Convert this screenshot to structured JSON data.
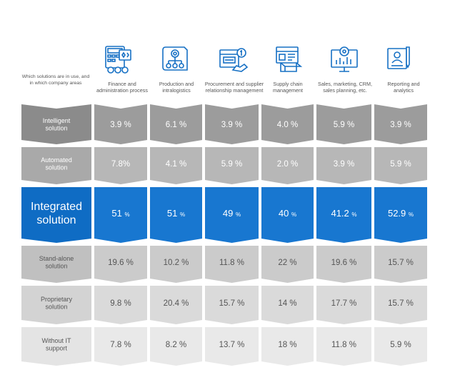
{
  "chart_data": {
    "type": "table",
    "corner_label": "Which solutions are in use, and in which company areas",
    "columns": [
      {
        "label": "Finance and administration process",
        "icon": "finance-calculator-icon"
      },
      {
        "label": "Production and intralogistics",
        "icon": "production-gear-flow-icon"
      },
      {
        "label": "Procurement and supplier relationship management",
        "icon": "procurement-handshake-icon"
      },
      {
        "label": "Supply chain management",
        "icon": "supply-chain-box-icon"
      },
      {
        "label": "Sales, marketing, CRM, sales planning, etc.",
        "icon": "sales-gear-chart-icon"
      },
      {
        "label": "Reporting and analytics",
        "icon": "reporting-person-pen-icon"
      }
    ],
    "rows": [
      {
        "label": "Intelligent solution",
        "values": [
          "3.9 %",
          "6.1 %",
          "3.9 %",
          "4.0 %",
          "5.9 %",
          "3.9 %"
        ]
      },
      {
        "label": "Automated solution",
        "values": [
          "7.8%",
          "4.1 %",
          "5.9 %",
          "2.0 %",
          "3.9 %",
          "5.9 %"
        ]
      },
      {
        "label": "Integrated solution",
        "values": [
          "51 %",
          "51 %",
          "49 %",
          "40 %",
          "41.2 %",
          "52.9 %"
        ],
        "highlight": true
      },
      {
        "label": "Stand-alone solution",
        "values": [
          "19.6 %",
          "10.2 %",
          "11.8 %",
          "22 %",
          "19.6 %",
          "15.7 %"
        ]
      },
      {
        "label": "Proprietary solution",
        "values": [
          "9.8 %",
          "20.4 %",
          "15.7 %",
          "14 %",
          "17.7 %",
          "15.7 %"
        ]
      },
      {
        "label": "Without IT support",
        "values": [
          "7.8 %",
          "8.2 %",
          "13.7 %",
          "18 %",
          "11.8 %",
          "5.9 %"
        ]
      }
    ],
    "colors": {
      "header_text": "#555555",
      "icon": "#1670c4",
      "rows": [
        {
          "label_bg": "#8b8b8b",
          "cell_bg": "#9c9c9c",
          "text": "#ffffff"
        },
        {
          "label_bg": "#a9a9a9",
          "cell_bg": "#b7b7b7",
          "text": "#ffffff"
        },
        {
          "label_bg": "#0f6cc4",
          "cell_bg": "#1877d0",
          "text": "#ffffff"
        },
        {
          "label_bg": "#c0c0c0",
          "cell_bg": "#cbcbcb",
          "text": "#555555"
        },
        {
          "label_bg": "#d3d3d3",
          "cell_bg": "#dadada",
          "text": "#555555"
        },
        {
          "label_bg": "#e4e4e4",
          "cell_bg": "#e9e9e9",
          "text": "#555555"
        }
      ]
    }
  }
}
